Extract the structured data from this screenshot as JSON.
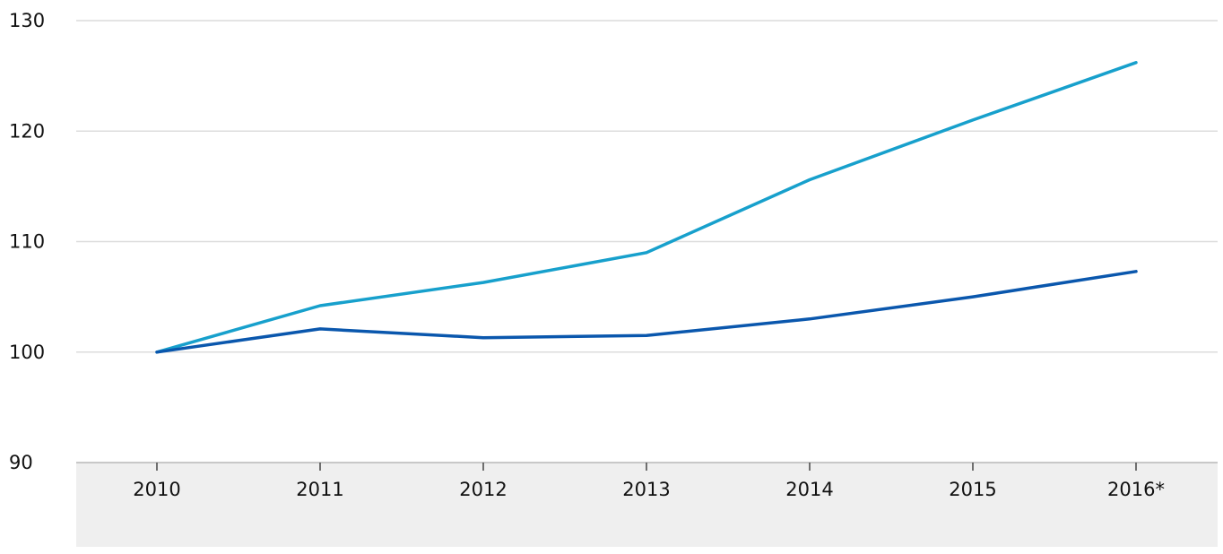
{
  "chart_data": {
    "type": "line",
    "title": "",
    "xlabel": "",
    "ylabel": "",
    "categories": [
      "2010",
      "2011",
      "2012",
      "2013",
      "2014",
      "2015",
      "2016*"
    ],
    "ylim": [
      90,
      130
    ],
    "yticks": [
      90,
      100,
      110,
      120,
      130
    ],
    "grid": true,
    "legend": "none",
    "series": [
      {
        "color": "#17a0cc",
        "values": [
          100,
          104.2,
          106.3,
          109,
          115.6,
          121,
          126.2
        ]
      },
      {
        "color": "#0a57ad",
        "values": [
          100,
          102.1,
          101.3,
          101.5,
          103,
          105,
          107.3
        ]
      }
    ],
    "colors": {
      "axis_band": "#efefef",
      "gridline": "#dcdcdc"
    }
  }
}
